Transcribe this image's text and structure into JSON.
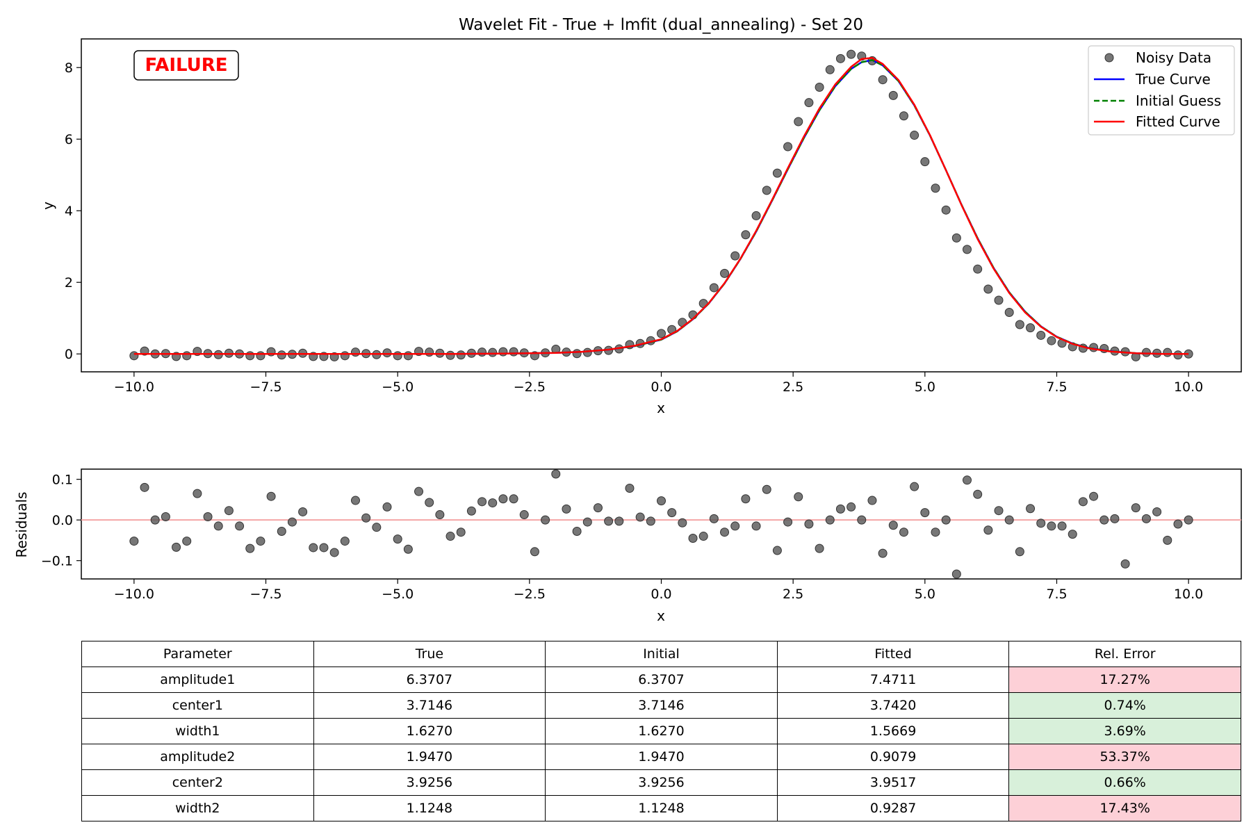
{
  "chart_data": [
    {
      "type": "line",
      "title": "Wavelet Fit - True + lmfit (dual_annealing) - Set 20",
      "xlabel": "x",
      "ylabel": "y",
      "xlim": [
        -11.0,
        11.0
      ],
      "ylim": [
        -0.5,
        8.8
      ],
      "x_ticks": [
        -10.0,
        -7.5,
        -5.0,
        -2.5,
        0.0,
        2.5,
        5.0,
        7.5,
        10.0
      ],
      "x_tick_labels": [
        "−10.0",
        "−7.5",
        "−5.0",
        "−2.5",
        "0.0",
        "2.5",
        "5.0",
        "7.5",
        "10.0"
      ],
      "y_ticks": [
        0,
        2,
        4,
        6,
        8
      ],
      "y_tick_labels": [
        "0",
        "2",
        "4",
        "6",
        "8"
      ],
      "grid": false,
      "legend_position": "top-right",
      "status_badge": "FAILURE",
      "series": [
        {
          "name": "Noisy Data",
          "kind": "scatter",
          "color": "#555555",
          "x": [
            -10.0,
            -9.8,
            -9.6,
            -9.4,
            -9.2,
            -9.0,
            -8.8,
            -8.6,
            -8.4,
            -8.2,
            -8.0,
            -7.8,
            -7.6,
            -7.4,
            -7.2,
            -7.0,
            -6.8,
            -6.6,
            -6.4,
            -6.2,
            -6.0,
            -5.8,
            -5.6,
            -5.4,
            -5.2,
            -5.0,
            -4.8,
            -4.6,
            -4.4,
            -4.2,
            -4.0,
            -3.8,
            -3.6,
            -3.4,
            -3.2,
            -3.0,
            -2.8,
            -2.6,
            -2.4,
            -2.2,
            -2.0,
            -1.8,
            -1.6,
            -1.4,
            -1.2,
            -1.0,
            -0.8,
            -0.6,
            -0.4,
            -0.2,
            0.0,
            0.2,
            0.4,
            0.6,
            0.8,
            1.0,
            1.2,
            1.4,
            1.6,
            1.8,
            2.0,
            2.2,
            2.4,
            2.6,
            2.8,
            3.0,
            3.2,
            3.4,
            3.6,
            3.8,
            4.0,
            4.2,
            4.4,
            4.6,
            4.8,
            5.0,
            5.2,
            5.4,
            5.6,
            5.8,
            6.0,
            6.2,
            6.4,
            6.6,
            6.8,
            7.0,
            7.2,
            7.4,
            7.6,
            7.8,
            8.0,
            8.2,
            8.4,
            8.6,
            8.8,
            9.0,
            9.2,
            9.4,
            9.6,
            9.8,
            10.0
          ],
          "y": [
            -0.05,
            0.08,
            0.0,
            0.01,
            -0.07,
            -0.05,
            0.07,
            0.01,
            -0.02,
            0.02,
            0.0,
            -0.05,
            -0.05,
            0.06,
            -0.03,
            -0.01,
            0.02,
            -0.07,
            -0.07,
            -0.08,
            -0.05,
            0.05,
            0.01,
            -0.02,
            0.03,
            -0.05,
            -0.05,
            0.07,
            0.05,
            0.02,
            -0.04,
            -0.03,
            0.02,
            0.05,
            0.04,
            0.06,
            0.06,
            0.03,
            -0.05,
            0.03,
            0.13,
            0.05,
            0.01,
            0.04,
            0.09,
            0.1,
            0.14,
            0.26,
            0.29,
            0.37,
            0.57,
            0.68,
            0.88,
            1.09,
            1.41,
            1.85,
            2.25,
            2.74,
            3.33,
            3.86,
            4.57,
            5.05,
            5.79,
            6.49,
            7.02,
            7.45,
            7.94,
            8.25,
            8.37,
            8.32,
            8.19,
            7.66,
            7.22,
            6.65,
            6.11,
            5.37,
            4.63,
            4.02,
            3.24,
            2.92,
            2.37,
            1.81,
            1.5,
            1.16,
            0.82,
            0.73,
            0.52,
            0.37,
            0.3,
            0.2,
            0.16,
            0.18,
            0.15,
            0.08,
            0.06,
            -0.08,
            0.04,
            0.02,
            0.04,
            -0.03,
            0.0
          ]
        },
        {
          "name": "True Curve",
          "kind": "line",
          "color": "#0000ff",
          "dash": "solid",
          "x": [
            -10.0,
            -9.0,
            -8.0,
            -7.0,
            -6.0,
            -5.0,
            -4.0,
            -3.0,
            -2.0,
            -1.5,
            -1.0,
            -0.5,
            0.0,
            0.3,
            0.6,
            0.9,
            1.2,
            1.5,
            1.8,
            2.1,
            2.4,
            2.7,
            3.0,
            3.3,
            3.6,
            3.8,
            4.0,
            4.2,
            4.5,
            4.8,
            5.1,
            5.4,
            5.7,
            6.0,
            6.3,
            6.6,
            6.9,
            7.2,
            7.5,
            7.8,
            8.1,
            8.5,
            9.0,
            9.5,
            10.0
          ],
          "y": [
            0.0,
            0.0,
            0.0,
            0.0,
            0.0,
            0.0,
            0.0,
            0.01,
            0.03,
            0.06,
            0.12,
            0.22,
            0.4,
            0.63,
            0.97,
            1.41,
            1.97,
            2.65,
            3.42,
            4.28,
            5.16,
            6.02,
            6.81,
            7.48,
            7.96,
            8.15,
            8.21,
            8.06,
            7.62,
            6.94,
            6.09,
            5.13,
            4.15,
            3.23,
            2.41,
            1.72,
            1.18,
            0.77,
            0.48,
            0.29,
            0.17,
            0.08,
            0.02,
            0.0,
            0.0
          ]
        },
        {
          "name": "Initial Guess",
          "kind": "line",
          "color": "#008000",
          "dash": "dashed",
          "x": [
            -10.0,
            -9.0,
            -8.0,
            -7.0,
            -6.0,
            -5.0,
            -4.0,
            -3.0,
            -2.0,
            -1.5,
            -1.0,
            -0.5,
            0.0,
            0.3,
            0.6,
            0.9,
            1.2,
            1.5,
            1.8,
            2.1,
            2.4,
            2.7,
            3.0,
            3.3,
            3.6,
            3.8,
            4.0,
            4.2,
            4.5,
            4.8,
            5.1,
            5.4,
            5.7,
            6.0,
            6.3,
            6.6,
            6.9,
            7.2,
            7.5,
            7.8,
            8.1,
            8.5,
            9.0,
            9.5,
            10.0
          ],
          "y": [
            0.0,
            0.0,
            0.0,
            0.0,
            0.0,
            0.0,
            0.0,
            0.01,
            0.03,
            0.06,
            0.12,
            0.22,
            0.4,
            0.63,
            0.97,
            1.41,
            1.97,
            2.65,
            3.42,
            4.28,
            5.16,
            6.02,
            6.81,
            7.48,
            7.96,
            8.15,
            8.21,
            8.06,
            7.62,
            6.94,
            6.09,
            5.13,
            4.15,
            3.23,
            2.41,
            1.72,
            1.18,
            0.77,
            0.48,
            0.29,
            0.17,
            0.08,
            0.02,
            0.0,
            0.0
          ]
        },
        {
          "name": "Fitted Curve",
          "kind": "line",
          "color": "#ff0000",
          "dash": "solid",
          "x": [
            -10.0,
            -9.0,
            -8.0,
            -7.0,
            -6.0,
            -5.0,
            -4.0,
            -3.0,
            -2.0,
            -1.5,
            -1.0,
            -0.5,
            0.0,
            0.3,
            0.6,
            0.9,
            1.2,
            1.5,
            1.8,
            2.1,
            2.4,
            2.7,
            3.0,
            3.3,
            3.6,
            3.8,
            4.0,
            4.2,
            4.5,
            4.8,
            5.1,
            5.4,
            5.7,
            6.0,
            6.3,
            6.6,
            6.9,
            7.2,
            7.5,
            7.8,
            8.1,
            8.5,
            9.0,
            9.5,
            10.0
          ],
          "y": [
            0.0,
            0.0,
            0.0,
            0.0,
            0.0,
            0.0,
            0.0,
            0.01,
            0.03,
            0.06,
            0.12,
            0.23,
            0.41,
            0.64,
            0.98,
            1.42,
            1.98,
            2.66,
            3.44,
            4.3,
            5.19,
            6.06,
            6.86,
            7.53,
            8.02,
            8.24,
            8.27,
            8.1,
            7.65,
            6.96,
            6.1,
            5.13,
            4.14,
            3.21,
            2.39,
            1.7,
            1.16,
            0.76,
            0.47,
            0.28,
            0.16,
            0.07,
            0.02,
            0.0,
            0.0
          ]
        }
      ]
    },
    {
      "type": "scatter",
      "title": "",
      "xlabel": "x",
      "ylabel": "Residuals",
      "xlim": [
        -11.0,
        11.0
      ],
      "ylim": [
        -0.145,
        0.125
      ],
      "x_ticks": [
        -10.0,
        -7.5,
        -5.0,
        -2.5,
        0.0,
        2.5,
        5.0,
        7.5,
        10.0
      ],
      "x_tick_labels": [
        "−10.0",
        "−7.5",
        "−5.0",
        "−2.5",
        "0.0",
        "2.5",
        "5.0",
        "7.5",
        "10.0"
      ],
      "y_ticks": [
        0.1,
        0.0,
        -0.1
      ],
      "y_tick_labels": [
        "0.1",
        "0.0",
        "−0.1"
      ],
      "grid": false,
      "reference_line": {
        "y": 0.0,
        "color": "#f4a6a6"
      },
      "series": [
        {
          "kind": "scatter",
          "color": "#555555",
          "x": [
            -10.0,
            -9.8,
            -9.6,
            -9.4,
            -9.2,
            -9.0,
            -8.8,
            -8.6,
            -8.4,
            -8.2,
            -8.0,
            -7.8,
            -7.6,
            -7.4,
            -7.2,
            -7.0,
            -6.8,
            -6.6,
            -6.4,
            -6.2,
            -6.0,
            -5.8,
            -5.6,
            -5.4,
            -5.2,
            -5.0,
            -4.8,
            -4.6,
            -4.4,
            -4.2,
            -4.0,
            -3.8,
            -3.6,
            -3.4,
            -3.2,
            -3.0,
            -2.8,
            -2.6,
            -2.4,
            -2.2,
            -2.0,
            -1.8,
            -1.6,
            -1.4,
            -1.2,
            -1.0,
            -0.8,
            -0.6,
            -0.4,
            -0.2,
            0.0,
            0.2,
            0.4,
            0.6,
            0.8,
            1.0,
            1.2,
            1.4,
            1.6,
            1.8,
            2.0,
            2.2,
            2.4,
            2.6,
            2.8,
            3.0,
            3.2,
            3.4,
            3.6,
            3.8,
            4.0,
            4.2,
            4.4,
            4.6,
            4.8,
            5.0,
            5.2,
            5.4,
            5.6,
            5.8,
            6.0,
            6.2,
            6.4,
            6.6,
            6.8,
            7.0,
            7.2,
            7.4,
            7.6,
            7.8,
            8.0,
            8.2,
            8.4,
            8.6,
            8.8,
            9.0,
            9.2,
            9.4,
            9.6,
            9.8,
            10.0
          ],
          "y": [
            -0.052,
            0.08,
            0.0,
            0.008,
            -0.067,
            -0.052,
            0.065,
            0.008,
            -0.015,
            0.023,
            -0.015,
            -0.07,
            -0.052,
            0.058,
            -0.028,
            -0.005,
            0.02,
            -0.068,
            -0.068,
            -0.08,
            -0.052,
            0.048,
            0.005,
            -0.018,
            0.032,
            -0.047,
            -0.072,
            0.07,
            0.043,
            0.013,
            -0.04,
            -0.03,
            0.022,
            0.045,
            0.042,
            0.052,
            0.052,
            0.013,
            -0.078,
            0.0,
            0.113,
            0.027,
            -0.028,
            -0.005,
            0.03,
            -0.003,
            -0.003,
            0.078,
            0.007,
            -0.003,
            0.047,
            0.018,
            -0.007,
            -0.045,
            -0.04,
            0.003,
            -0.03,
            -0.015,
            0.052,
            -0.015,
            0.075,
            -0.075,
            -0.005,
            0.057,
            -0.01,
            -0.07,
            0.0,
            0.027,
            0.032,
            0.0,
            0.048,
            -0.082,
            -0.013,
            -0.03,
            0.082,
            0.018,
            -0.03,
            0.0,
            -0.133,
            0.098,
            0.063,
            -0.025,
            0.023,
            0.0,
            -0.078,
            0.028,
            -0.008,
            -0.015,
            -0.015,
            -0.035,
            0.045,
            0.058,
            0.0,
            0.003,
            -0.108,
            0.03,
            0.003,
            0.02,
            -0.05,
            -0.01,
            0.0
          ]
        }
      ]
    }
  ],
  "results_table": {
    "headers": [
      "Parameter",
      "True",
      "Initial",
      "Fitted",
      "Rel. Error"
    ],
    "rows": [
      {
        "parameter": "amplitude1",
        "true": "6.3707",
        "initial": "6.3707",
        "fitted": "7.4711",
        "rel_error": "17.27%",
        "status": "bad"
      },
      {
        "parameter": "center1",
        "true": "3.7146",
        "initial": "3.7146",
        "fitted": "3.7420",
        "rel_error": "0.74%",
        "status": "good"
      },
      {
        "parameter": "width1",
        "true": "1.6270",
        "initial": "1.6270",
        "fitted": "1.5669",
        "rel_error": "3.69%",
        "status": "good"
      },
      {
        "parameter": "amplitude2",
        "true": "1.9470",
        "initial": "1.9470",
        "fitted": "0.9079",
        "rel_error": "53.37%",
        "status": "bad"
      },
      {
        "parameter": "center2",
        "true": "3.9256",
        "initial": "3.9256",
        "fitted": "3.9517",
        "rel_error": "0.66%",
        "status": "good"
      },
      {
        "parameter": "width2",
        "true": "1.1248",
        "initial": "1.1248",
        "fitted": "0.9287",
        "rel_error": "17.43%",
        "status": "bad"
      }
    ]
  },
  "colors": {
    "good_cell": "#d8f0da",
    "bad_cell": "#fdd0d7",
    "failure_text": "#ff0000"
  }
}
